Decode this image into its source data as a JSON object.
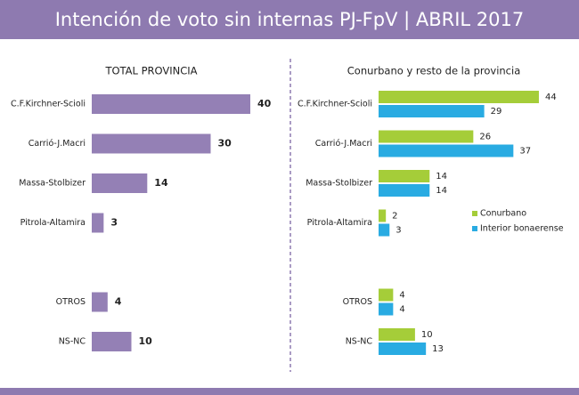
{
  "header": {
    "title": "Intención de voto sin internas PJ-FpV | ABRIL 2017"
  },
  "chart_data": [
    {
      "type": "bar",
      "orientation": "horizontal",
      "title": "TOTAL PROVINCIA",
      "categories": [
        "C.F.Kirchner-Scioli",
        "Carrió-J.Macri",
        "Massa-Stolbizer",
        "Pitrola-Altamira",
        null,
        "OTROS",
        "NS-NC"
      ],
      "values": [
        40,
        30,
        14,
        3,
        null,
        4,
        10
      ],
      "color": "#9480b5"
    },
    {
      "type": "bar",
      "orientation": "horizontal",
      "title": "Conurbano y resto de la provincia",
      "categories": [
        "C.F.Kirchner-Scioli",
        "Carrió-J.Macri",
        "Massa-Stolbizer",
        "Pitrola-Altamira",
        null,
        "OTROS",
        "NS-NC"
      ],
      "series": [
        {
          "name": "Conurbano",
          "color": "#a5cd39",
          "values": [
            44,
            26,
            14,
            2,
            null,
            4,
            10
          ]
        },
        {
          "name": "Interior bonaerense",
          "color": "#29abe2",
          "values": [
            29,
            37,
            14,
            3,
            null,
            4,
            13
          ]
        }
      ],
      "legend": "right"
    }
  ]
}
